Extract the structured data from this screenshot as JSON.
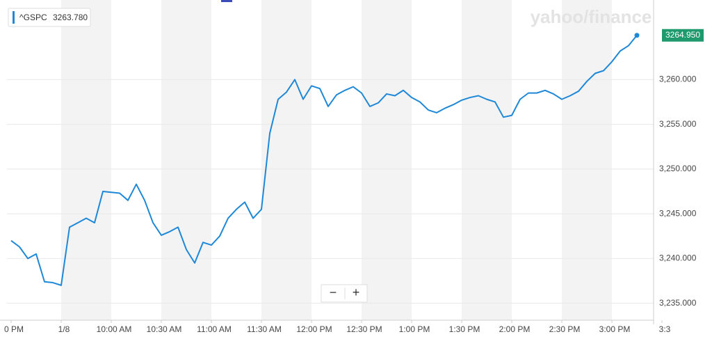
{
  "chart_data": {
    "type": "line",
    "categories": [
      "0 PM",
      null,
      null,
      null,
      null,
      null,
      "1/8",
      null,
      null,
      null,
      null,
      null,
      "10:00 AM",
      null,
      null,
      null,
      null,
      null,
      "10:30 AM",
      null,
      null,
      null,
      null,
      null,
      "11:00 AM",
      null,
      null,
      null,
      null,
      null,
      "11:30 AM",
      null,
      null,
      null,
      null,
      null,
      "12:00 PM",
      null,
      null,
      null,
      null,
      null,
      "12:30 PM",
      null,
      null,
      null,
      null,
      null,
      "1:00 PM",
      null,
      null,
      null,
      null,
      null,
      "1:30 PM",
      null,
      null,
      null,
      null,
      null,
      "2:00 PM",
      null,
      null,
      null,
      null,
      null,
      "2:30 PM",
      null,
      null,
      null,
      null,
      null,
      "3:00 PM",
      null,
      null,
      null,
      null,
      null,
      "3:3"
    ],
    "series": [
      {
        "name": "^GSPC",
        "color": "#1e88d8",
        "quote": "3263.780",
        "values": [
          3242.0,
          3241.3,
          3240.0,
          3240.5,
          3237.4,
          3237.3,
          3237.0,
          3243.5,
          3244.0,
          3244.5,
          3244.0,
          3247.5,
          3247.4,
          3247.3,
          3246.5,
          3248.3,
          3246.5,
          3244.0,
          3242.6,
          3243.0,
          3243.5,
          3241.0,
          3239.5,
          3241.8,
          3241.5,
          3242.5,
          3244.5,
          3245.5,
          3246.3,
          3244.5,
          3245.5,
          3254.0,
          3257.8,
          3258.6,
          3260.0,
          3257.8,
          3259.3,
          3259.0,
          3257.0,
          3258.3,
          3258.8,
          3259.2,
          3258.5,
          3257.0,
          3257.4,
          3258.4,
          3258.2,
          3258.8,
          3258.0,
          3257.5,
          3256.6,
          3256.3,
          3256.8,
          3257.2,
          3257.7,
          3258.0,
          3258.2,
          3257.8,
          3257.5,
          3255.8,
          3256.0,
          3257.8,
          3258.5,
          3258.5,
          3258.8,
          3258.4,
          3257.8,
          3258.2,
          3258.7,
          3259.8,
          3260.7,
          3261.0,
          3262.0,
          3263.2,
          3263.8,
          3264.95,
          null,
          null,
          null
        ],
        "value_labels": [
          null,
          null,
          null,
          null,
          null,
          null,
          null,
          null,
          null,
          null,
          null,
          null,
          null,
          null,
          null,
          null,
          null,
          null,
          null,
          null,
          null,
          null,
          null,
          null,
          null,
          null,
          null,
          null,
          null,
          null,
          null,
          null,
          null,
          null,
          null,
          null,
          null,
          null,
          null,
          null,
          null,
          null,
          null,
          null,
          null,
          null,
          null,
          null,
          null,
          null,
          null,
          null,
          null,
          null,
          null,
          null,
          null,
          null,
          null,
          null,
          null,
          null,
          null,
          null,
          null,
          null,
          null,
          null,
          null,
          null,
          null,
          null,
          null,
          null,
          null,
          "3264.950",
          null,
          null,
          null
        ]
      }
    ],
    "ylim": [
      3233.1,
      3268.9
    ],
    "yticks": [
      {
        "value": 3235,
        "label": "3,235.000"
      },
      {
        "value": 3240,
        "label": "3,240.000"
      },
      {
        "value": 3245,
        "label": "3,245.000"
      },
      {
        "value": 3250,
        "label": "3,250.000"
      },
      {
        "value": 3255,
        "label": "3,255.000"
      },
      {
        "value": 3260,
        "label": "3,260.000"
      }
    ],
    "grid": true
  },
  "logo": "yahoo/finance",
  "zoom_controls": [
    "−",
    "+"
  ]
}
